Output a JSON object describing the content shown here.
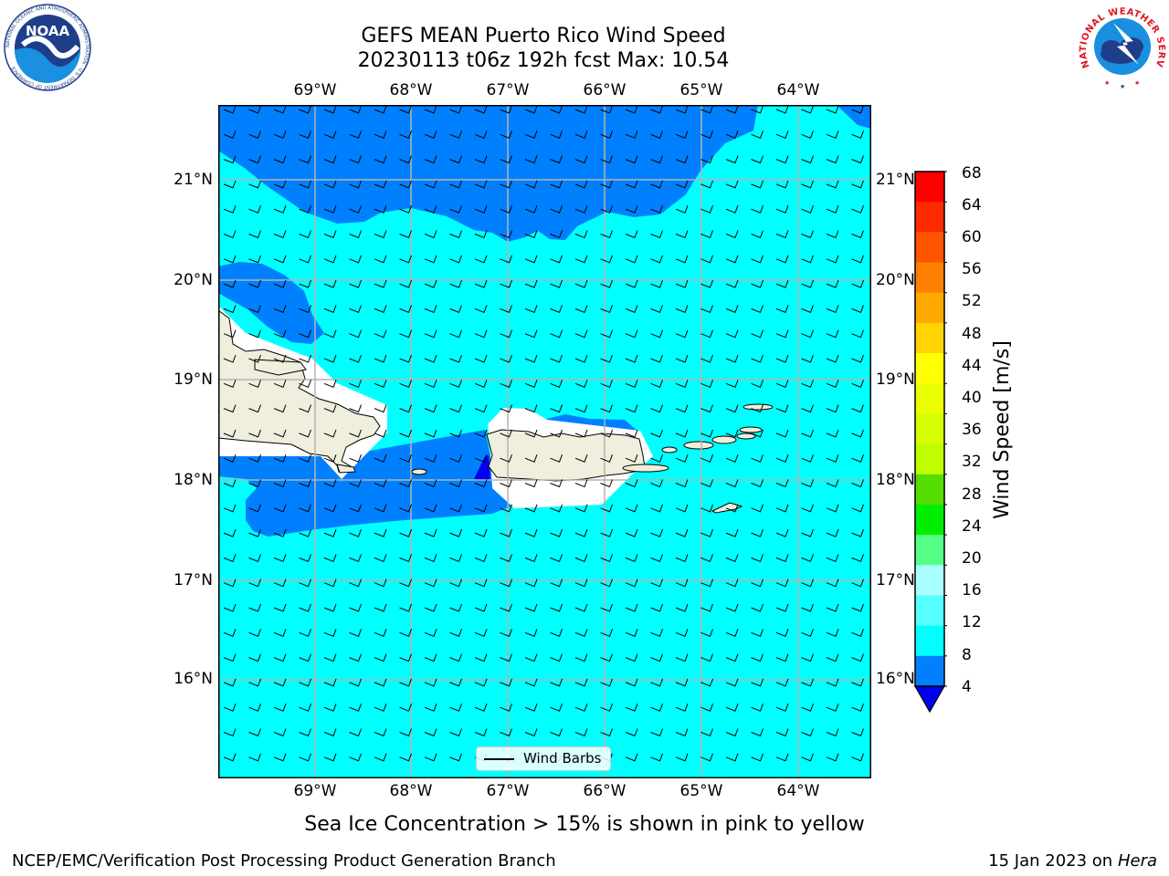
{
  "map": {
    "title_line1": "GEFS MEAN Puerto Rico Wind Speed",
    "title_line2": "20230113 t06z 192h fcst   Max: 10.54",
    "lon_labels": [
      "69°W",
      "68°W",
      "67°W",
      "66°W",
      "65°W",
      "64°W"
    ],
    "lat_labels_left": [
      "21°N",
      "20°N",
      "19°N",
      "18°N",
      "17°N",
      "16°N"
    ],
    "lat_labels_right": [
      "21°N",
      "20°N",
      "19°N",
      "18°N",
      "17°N",
      "16°N"
    ],
    "legend_label": "Wind Barbs",
    "caption": "Sea Ice Concentration > 15% is shown in pink to yellow"
  },
  "colorbar": {
    "label": "Wind Speed [m/s]",
    "ticks": [
      "68",
      "64",
      "60",
      "56",
      "52",
      "48",
      "44",
      "40",
      "36",
      "32",
      "28",
      "24",
      "20",
      "16",
      "12",
      "8",
      "4"
    ],
    "colors": [
      "#ff0000",
      "#ff2a00",
      "#ff5500",
      "#ff8000",
      "#ffaa00",
      "#ffd400",
      "#ffff00",
      "#eaff00",
      "#d4ff00",
      "#bfff00",
      "#55dd00",
      "#00ee00",
      "#55ff88",
      "#aaffff",
      "#55ffff",
      "#00ffff",
      "#0080ff"
    ],
    "extend_color": "#0000ee"
  },
  "colors": {
    "ocean_base": "#00ffff",
    "wind_band_dark": "#0080ff",
    "wind_band_deep": "#0000ee",
    "land": "#f0eedc",
    "grid": "#b4b4b4"
  },
  "footer": {
    "left": "NCEP/EMC/Verification Post Processing Product Generation Branch",
    "right_prefix": "15 Jan 2023 on ",
    "right_host": "Hera"
  },
  "logos": {
    "noaa_text": "NOAA",
    "noaa_ring_text": "NATIONAL OCEANIC AND ATMOSPHERIC ADMINISTRATION · U.S. DEPARTMENT OF COMMERCE",
    "nws_ring_text": "NATIONAL WEATHER SERVICE"
  }
}
